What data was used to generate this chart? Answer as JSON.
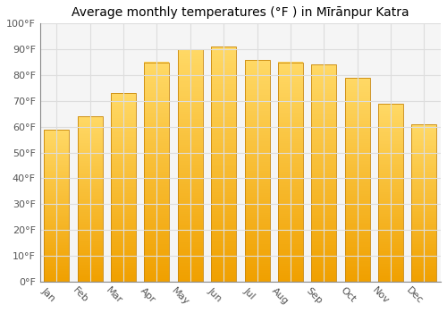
{
  "title": "Average monthly temperatures (°F ) in Mīrānpur Katra",
  "months": [
    "Jan",
    "Feb",
    "Mar",
    "Apr",
    "May",
    "Jun",
    "Jul",
    "Aug",
    "Sep",
    "Oct",
    "Nov",
    "Dec"
  ],
  "values": [
    59,
    64,
    73,
    85,
    90,
    91,
    86,
    85,
    84,
    79,
    69,
    61
  ],
  "bar_color_top": "#FFD966",
  "bar_color_bottom": "#F0A000",
  "bar_edge_color": "#C8860A",
  "background_color": "#FFFFFF",
  "plot_bg_color": "#F5F5F5",
  "grid_color": "#DDDDDD",
  "ylim": [
    0,
    100
  ],
  "yticks": [
    0,
    10,
    20,
    30,
    40,
    50,
    60,
    70,
    80,
    90,
    100
  ],
  "ytick_labels": [
    "0°F",
    "10°F",
    "20°F",
    "30°F",
    "40°F",
    "50°F",
    "60°F",
    "70°F",
    "80°F",
    "90°F",
    "100°F"
  ],
  "title_fontsize": 10,
  "tick_fontsize": 8,
  "xlabel_rotation": -45
}
